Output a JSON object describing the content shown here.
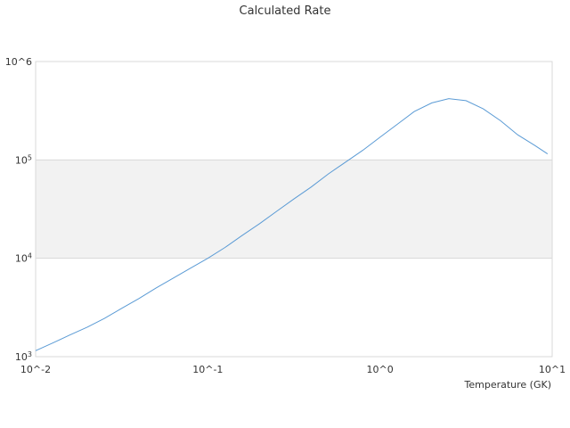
{
  "chart_data": {
    "type": "line",
    "title": "Calculated Rate",
    "xlabel": "Temperature (GK)",
    "ylabel": "",
    "x_scale": "log",
    "y_scale": "log",
    "xlim": [
      0.01,
      10
    ],
    "ylim": [
      1000,
      1000000
    ],
    "grid": true,
    "banded_y": true,
    "line_color": "#5b9bd5",
    "x_ticks": [
      {
        "value": 0.01,
        "base": "10^",
        "exp": "-2"
      },
      {
        "value": 0.1,
        "base": "10^",
        "exp": "-1"
      },
      {
        "value": 1,
        "base": "10^",
        "exp": "0"
      },
      {
        "value": 10,
        "base": "10^",
        "exp": "1"
      }
    ],
    "y_ticks": [
      {
        "value": 1000,
        "base": "10",
        "exp": "3"
      },
      {
        "value": 10000,
        "base": "10",
        "exp": "4"
      },
      {
        "value": 100000,
        "base": "10",
        "exp": "5"
      },
      {
        "value": 1000000,
        "base": "10^",
        "exp": "6"
      }
    ],
    "series": [
      {
        "x": [
          0.01,
          0.0126,
          0.0158,
          0.02,
          0.0251,
          0.0316,
          0.0398,
          0.0501,
          0.0631,
          0.0794,
          0.1,
          0.126,
          0.158,
          0.2,
          0.251,
          0.316,
          0.398,
          0.501,
          0.631,
          0.794,
          1.0,
          1.26,
          1.58,
          2.0,
          2.51,
          3.16,
          3.98,
          5.01,
          6.31,
          7.94,
          9.4
        ],
        "y": [
          1150,
          1380,
          1660,
          2000,
          2450,
          3100,
          3900,
          5000,
          6300,
          7950,
          10000,
          12900,
          17000,
          22500,
          30000,
          40000,
          53000,
          72000,
          95000,
          125000,
          170000,
          230000,
          310000,
          380000,
          420000,
          400000,
          330000,
          250000,
          180000,
          140000,
          115000
        ]
      }
    ]
  }
}
